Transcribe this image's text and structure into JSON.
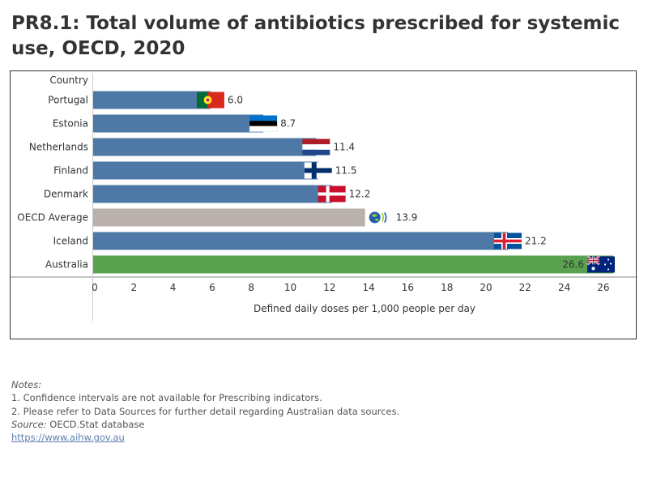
{
  "page": {
    "title": "PR8.1: Total volume of antibiotics prescribed for systemic use, OECD, 2020"
  },
  "chart_data": {
    "type": "bar",
    "orientation": "horizontal",
    "row_header": "Country",
    "categories": [
      "Portugal",
      "Estonia",
      "Netherlands",
      "Finland",
      "Denmark",
      "OECD Average",
      "Iceland",
      "Australia"
    ],
    "values": [
      6.0,
      8.7,
      11.4,
      11.5,
      12.2,
      13.9,
      21.2,
      26.6
    ],
    "value_labels": [
      "6.0",
      "8.7",
      "11.4",
      "11.5",
      "12.2",
      "13.9",
      "21.2",
      "26.6"
    ],
    "xlabel": "Defined daily doses per 1,000 people per day",
    "xlim": [
      0,
      26.5
    ],
    "xticks": [
      "0",
      "2",
      "4",
      "6",
      "8",
      "10",
      "12",
      "14",
      "16",
      "18",
      "20",
      "22",
      "24",
      "26"
    ],
    "grid": false,
    "bar_colors": [
      "#4e79a7",
      "#4e79a7",
      "#4e79a7",
      "#4e79a7",
      "#4e79a7",
      "#bab0ac",
      "#4e79a7",
      "#59a14f"
    ],
    "flag_icons": [
      "portugal-flag-icon",
      "estonia-flag-icon",
      "netherlands-flag-icon",
      "finland-flag-icon",
      "denmark-flag-icon",
      "oecd-logo-icon",
      "iceland-flag-icon",
      "australia-flag-icon"
    ]
  },
  "notes": {
    "heading": "Notes:",
    "lines": [
      "1. Confidence intervals are not available for Prescribing indicators.",
      "2. Please refer to Data Sources for further detail regarding Australian data sources."
    ],
    "source_label": "Source:",
    "source_text": "OECD.Stat database",
    "link_text": "https://www.aihw.gov.au"
  }
}
